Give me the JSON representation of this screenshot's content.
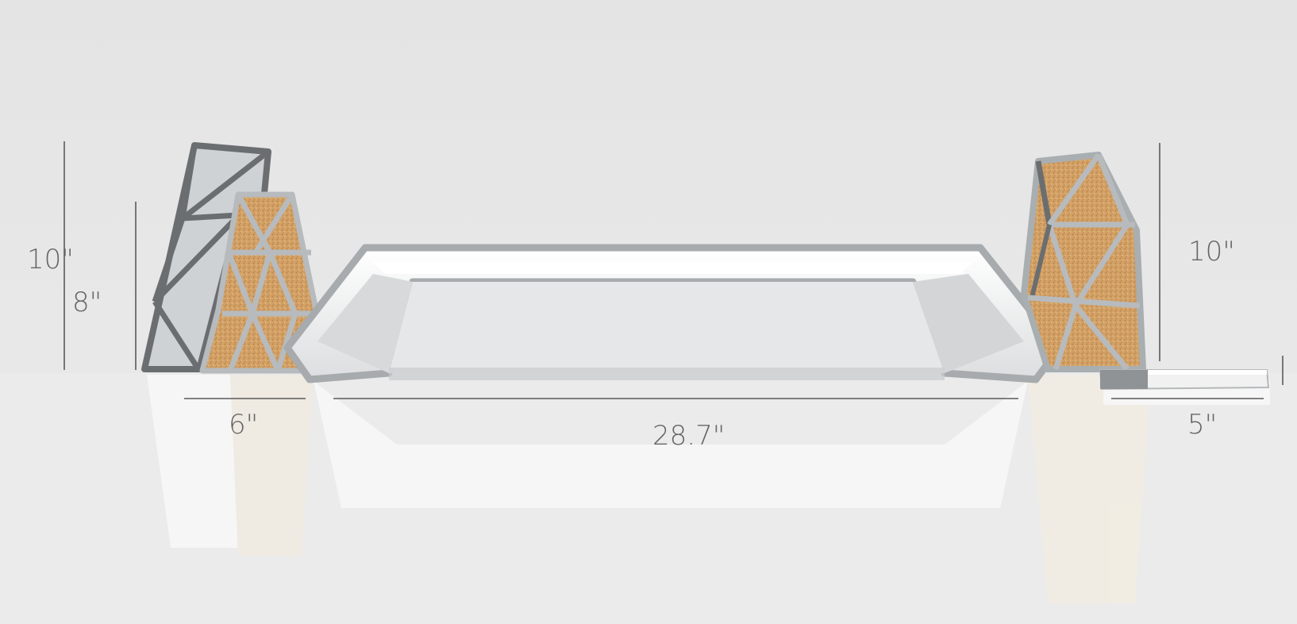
{
  "dimensions": {
    "left_outer_height": "10\"",
    "left_inner_height": "8\"",
    "left_width": "6\"",
    "center_length": "28.7\"",
    "right_height": "10\"",
    "tray_width": "5\""
  },
  "colors": {
    "background": "#e6e6e6",
    "frame_dark": "#6b6e70",
    "frame_light": "#a9aeb1",
    "cork": "#d4a46a",
    "glass": "#cfd2d4"
  }
}
